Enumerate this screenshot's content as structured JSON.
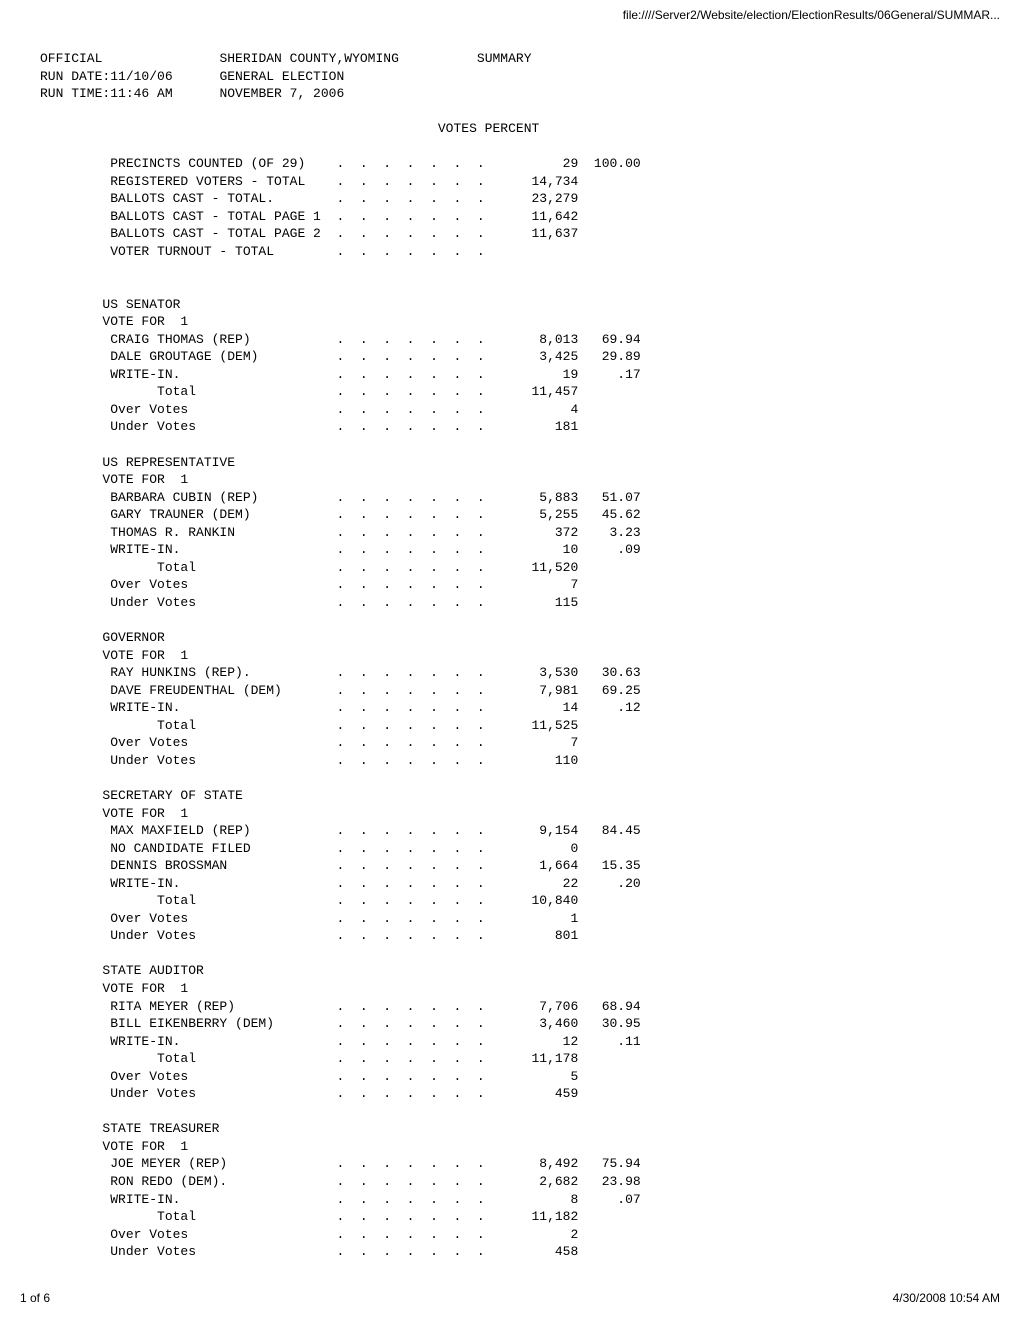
{
  "url_line": "file:////Server2/Website/election/ElectionResults/06General/SUMMAR...",
  "header": {
    "left1": "OFFICIAL",
    "left2": "RUN DATE:11/10/06",
    "left3": "RUN TIME:11:46 AM",
    "mid1": "SHERIDAN COUNTY,WYOMING",
    "mid2": "GENERAL ELECTION",
    "mid3": "NOVEMBER 7, 2006",
    "right1": "SUMMARY"
  },
  "columns_header": "VOTES PERCENT",
  "precinct_block": {
    "rows": [
      {
        "label": "PRECINCTS COUNTED (OF 29)",
        "votes": "29",
        "pct": "100.00"
      },
      {
        "label": "REGISTERED VOTERS - TOTAL",
        "votes": "14,734",
        "pct": ""
      },
      {
        "label": "BALLOTS CAST - TOTAL.",
        "votes": "23,279",
        "pct": ""
      },
      {
        "label": "BALLOTS CAST - TOTAL PAGE 1",
        "votes": "11,642",
        "pct": ""
      },
      {
        "label": "BALLOTS CAST - TOTAL PAGE 2",
        "votes": "11,637",
        "pct": ""
      },
      {
        "label": "VOTER TURNOUT - TOTAL",
        "votes": "",
        "pct": ""
      }
    ]
  },
  "contests": [
    {
      "title": "US SENATOR",
      "vote_for": "VOTE FOR  1",
      "rows": [
        {
          "label": "CRAIG THOMAS (REP)",
          "votes": "8,013",
          "pct": "69.94"
        },
        {
          "label": "DALE GROUTAGE (DEM)",
          "votes": "3,425",
          "pct": "29.89"
        },
        {
          "label": "WRITE-IN.",
          "votes": "19",
          "pct": ".17"
        },
        {
          "label": "      Total",
          "votes": "11,457",
          "pct": ""
        },
        {
          "label": "Over Votes",
          "votes": "4",
          "pct": ""
        },
        {
          "label": "Under Votes",
          "votes": "181",
          "pct": ""
        }
      ]
    },
    {
      "title": "US REPRESENTATIVE",
      "vote_for": "VOTE FOR  1",
      "rows": [
        {
          "label": "BARBARA CUBIN (REP)",
          "votes": "5,883",
          "pct": "51.07"
        },
        {
          "label": "GARY TRAUNER (DEM)",
          "votes": "5,255",
          "pct": "45.62"
        },
        {
          "label": "THOMAS R. RANKIN",
          "votes": "372",
          "pct": "3.23"
        },
        {
          "label": "WRITE-IN.",
          "votes": "10",
          "pct": ".09"
        },
        {
          "label": "      Total",
          "votes": "11,520",
          "pct": ""
        },
        {
          "label": "Over Votes",
          "votes": "7",
          "pct": ""
        },
        {
          "label": "Under Votes",
          "votes": "115",
          "pct": ""
        }
      ]
    },
    {
      "title": "GOVERNOR",
      "vote_for": "VOTE FOR  1",
      "rows": [
        {
          "label": "RAY HUNKINS (REP).",
          "votes": "3,530",
          "pct": "30.63"
        },
        {
          "label": "DAVE FREUDENTHAL (DEM)",
          "votes": "7,981",
          "pct": "69.25"
        },
        {
          "label": "WRITE-IN.",
          "votes": "14",
          "pct": ".12"
        },
        {
          "label": "      Total",
          "votes": "11,525",
          "pct": ""
        },
        {
          "label": "Over Votes",
          "votes": "7",
          "pct": ""
        },
        {
          "label": "Under Votes",
          "votes": "110",
          "pct": ""
        }
      ]
    },
    {
      "title": "SECRETARY OF STATE",
      "vote_for": "VOTE FOR  1",
      "rows": [
        {
          "label": "MAX MAXFIELD (REP)",
          "votes": "9,154",
          "pct": "84.45"
        },
        {
          "label": "NO CANDIDATE FILED",
          "votes": "0",
          "pct": ""
        },
        {
          "label": "DENNIS BROSSMAN",
          "votes": "1,664",
          "pct": "15.35"
        },
        {
          "label": "WRITE-IN.",
          "votes": "22",
          "pct": ".20"
        },
        {
          "label": "      Total",
          "votes": "10,840",
          "pct": ""
        },
        {
          "label": "Over Votes",
          "votes": "1",
          "pct": ""
        },
        {
          "label": "Under Votes",
          "votes": "801",
          "pct": ""
        }
      ]
    },
    {
      "title": "STATE AUDITOR",
      "vote_for": "VOTE FOR  1",
      "rows": [
        {
          "label": "RITA MEYER (REP)",
          "votes": "7,706",
          "pct": "68.94"
        },
        {
          "label": "BILL EIKENBERRY (DEM)",
          "votes": "3,460",
          "pct": "30.95"
        },
        {
          "label": "WRITE-IN.",
          "votes": "12",
          "pct": ".11"
        },
        {
          "label": "      Total",
          "votes": "11,178",
          "pct": ""
        },
        {
          "label": "Over Votes",
          "votes": "5",
          "pct": ""
        },
        {
          "label": "Under Votes",
          "votes": "459",
          "pct": ""
        }
      ]
    },
    {
      "title": "STATE TREASURER",
      "vote_for": "VOTE FOR  1",
      "rows": [
        {
          "label": "JOE MEYER (REP)",
          "votes": "8,492",
          "pct": "75.94"
        },
        {
          "label": "RON REDO (DEM).",
          "votes": "2,682",
          "pct": "23.98"
        },
        {
          "label": "WRITE-IN.",
          "votes": "8",
          "pct": ".07"
        },
        {
          "label": "      Total",
          "votes": "11,182",
          "pct": ""
        },
        {
          "label": "Over Votes",
          "votes": "2",
          "pct": ""
        },
        {
          "label": "Under Votes",
          "votes": "458",
          "pct": ""
        }
      ]
    }
  ],
  "footer": {
    "left": "1 of 6",
    "right": "4/30/2008 10:54 AM"
  },
  "layout": {
    "label_width": 28,
    "dot_width": 22,
    "votes_width": 10,
    "pct_width": 8,
    "indent": "         "
  }
}
